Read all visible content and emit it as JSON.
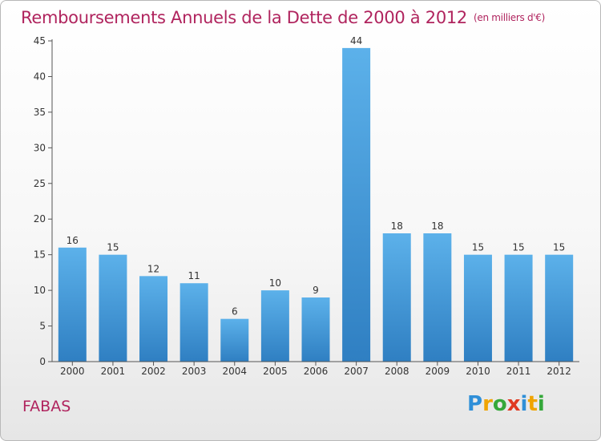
{
  "title": "Remboursements Annuels de la Dette de 2000 à 2012",
  "unit": "(en milliers d'€)",
  "commune": "FABAS",
  "logo": {
    "letters": [
      "P",
      "r",
      "o",
      "x",
      "i",
      "t",
      "i"
    ],
    "colors": [
      "#2f8fd8",
      "#f0a400",
      "#35a83a",
      "#e03a22",
      "#2f8fd8",
      "#f0a400",
      "#35a83a"
    ]
  },
  "colors": {
    "title": "#b0245e",
    "bar_light": "#5cb1ea",
    "bar_dark": "#2f7fc2",
    "axis": "#555555"
  },
  "chart_data": {
    "type": "bar",
    "categories": [
      "2000",
      "2001",
      "2002",
      "2003",
      "2004",
      "2005",
      "2006",
      "2007",
      "2008",
      "2009",
      "2010",
      "2011",
      "2012"
    ],
    "values": [
      16,
      15,
      12,
      11,
      6,
      10,
      9,
      44,
      18,
      18,
      15,
      15,
      15
    ],
    "ylim": [
      0,
      45
    ],
    "yticks": [
      0,
      5,
      10,
      15,
      20,
      25,
      30,
      35,
      40,
      45
    ],
    "grid": false,
    "legend": "none"
  }
}
